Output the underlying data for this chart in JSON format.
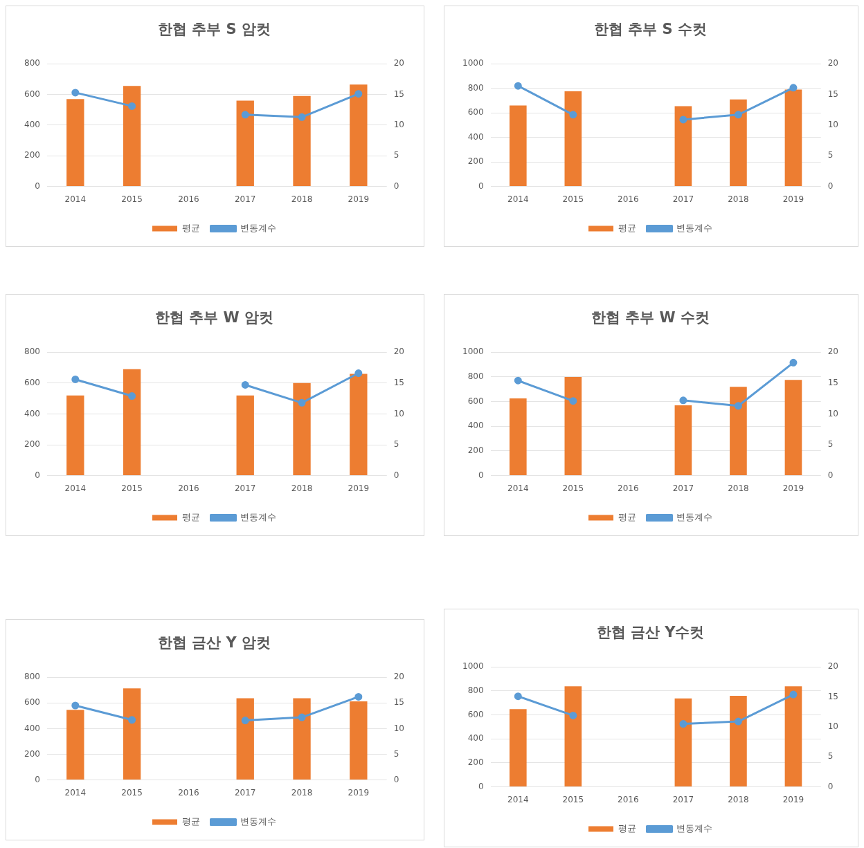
{
  "chart_data": [
    {
      "type": "bar",
      "title": "한협 추부 S 암컷",
      "categories": [
        "2014",
        "2015",
        "2016",
        "2017",
        "2018",
        "2019"
      ],
      "series": [
        {
          "name": "평균",
          "color": "#ed7d31",
          "values": [
            570,
            655,
            null,
            560,
            590,
            665
          ]
        },
        {
          "name": "변동계수",
          "type": "line",
          "axis": "y2",
          "color": "#5b9bd5",
          "values": [
            15.3,
            13.1,
            null,
            11.7,
            11.3,
            15.1
          ]
        }
      ],
      "ylim": [
        0,
        800
      ],
      "yticks": [
        0,
        200,
        400,
        600,
        800
      ],
      "y2lim": [
        0,
        20
      ],
      "y2ticks": [
        0,
        5,
        10,
        15,
        20
      ],
      "grid": "y",
      "legend": "bottom",
      "marker": "circle"
    },
    {
      "type": "bar",
      "title": "한협 추부 S 수컷",
      "categories": [
        "2014",
        "2015",
        "2016",
        "2017",
        "2018",
        "2019"
      ],
      "series": [
        {
          "name": "평균",
          "color": "#ed7d31",
          "values": [
            660,
            775,
            null,
            655,
            710,
            790
          ]
        },
        {
          "name": "변동계수",
          "type": "line",
          "axis": "y2",
          "color": "#5b9bd5",
          "values": [
            16.4,
            11.7,
            null,
            10.9,
            11.7,
            16.1
          ]
        }
      ],
      "ylim": [
        0,
        1000
      ],
      "yticks": [
        0,
        200,
        400,
        600,
        800,
        1000
      ],
      "y2lim": [
        0,
        20
      ],
      "y2ticks": [
        0,
        5,
        10,
        15,
        20
      ],
      "grid": "y",
      "legend": "bottom",
      "marker": "circle"
    },
    {
      "type": "bar",
      "title": "한협 추부 W 암컷",
      "categories": [
        "2014",
        "2015",
        "2016",
        "2017",
        "2018",
        "2019"
      ],
      "series": [
        {
          "name": "평균",
          "color": "#ed7d31",
          "values": [
            520,
            690,
            null,
            520,
            600,
            660
          ]
        },
        {
          "name": "변동계수",
          "type": "line",
          "axis": "y2",
          "color": "#5b9bd5",
          "values": [
            15.6,
            12.9,
            null,
            14.7,
            11.8,
            16.6
          ]
        }
      ],
      "ylim": [
        0,
        800
      ],
      "yticks": [
        0,
        200,
        400,
        600,
        800
      ],
      "y2lim": [
        0,
        20
      ],
      "y2ticks": [
        0,
        5,
        10,
        15,
        20
      ],
      "grid": "y",
      "legend": "bottom",
      "marker": "circle"
    },
    {
      "type": "bar",
      "title": "한협 추부 W 수컷",
      "categories": [
        "2014",
        "2015",
        "2016",
        "2017",
        "2018",
        "2019"
      ],
      "series": [
        {
          "name": "평균",
          "color": "#ed7d31",
          "values": [
            625,
            800,
            null,
            570,
            720,
            775
          ]
        },
        {
          "name": "변동계수",
          "type": "line",
          "axis": "y2",
          "color": "#5b9bd5",
          "values": [
            15.4,
            12.1,
            null,
            12.2,
            11.3,
            18.3
          ]
        }
      ],
      "ylim": [
        0,
        1000
      ],
      "yticks": [
        0,
        200,
        400,
        600,
        800,
        1000
      ],
      "y2lim": [
        0,
        20
      ],
      "y2ticks": [
        0,
        5,
        10,
        15,
        20
      ],
      "grid": "y",
      "legend": "bottom",
      "marker": "circle"
    },
    {
      "type": "bar",
      "title": "한협 금산 Y 암컷",
      "categories": [
        "2014",
        "2015",
        "2016",
        "2017",
        "2018",
        "2019"
      ],
      "series": [
        {
          "name": "평균",
          "color": "#ed7d31",
          "values": [
            547,
            714,
            null,
            637,
            637,
            613
          ]
        },
        {
          "name": "변동계수",
          "type": "line",
          "axis": "y2",
          "color": "#5b9bd5",
          "values": [
            14.5,
            11.7,
            null,
            11.6,
            12.2,
            16.2
          ]
        }
      ],
      "ylim": [
        0,
        800
      ],
      "yticks": [
        0,
        200,
        400,
        600,
        800
      ],
      "y2lim": [
        0,
        20
      ],
      "y2ticks": [
        0,
        5,
        10,
        15,
        20
      ],
      "grid": "y",
      "legend": "bottom",
      "marker": "circle"
    },
    {
      "type": "bar",
      "title": "한협 금산 Y수컷",
      "categories": [
        "2014",
        "2015",
        "2016",
        "2017",
        "2018",
        "2019"
      ],
      "series": [
        {
          "name": "평균",
          "color": "#ed7d31",
          "values": [
            648,
            838,
            null,
            737,
            759,
            838
          ]
        },
        {
          "name": "변동계수",
          "type": "line",
          "axis": "y2",
          "color": "#5b9bd5",
          "values": [
            15.1,
            11.9,
            null,
            10.5,
            10.9,
            15.4
          ]
        }
      ],
      "ylim": [
        0,
        1000
      ],
      "yticks": [
        0,
        200,
        400,
        600,
        800,
        1000
      ],
      "y2lim": [
        0,
        20
      ],
      "y2ticks": [
        0,
        5,
        10,
        15,
        20
      ],
      "grid": "y",
      "legend": "bottom",
      "marker": "circle"
    }
  ]
}
